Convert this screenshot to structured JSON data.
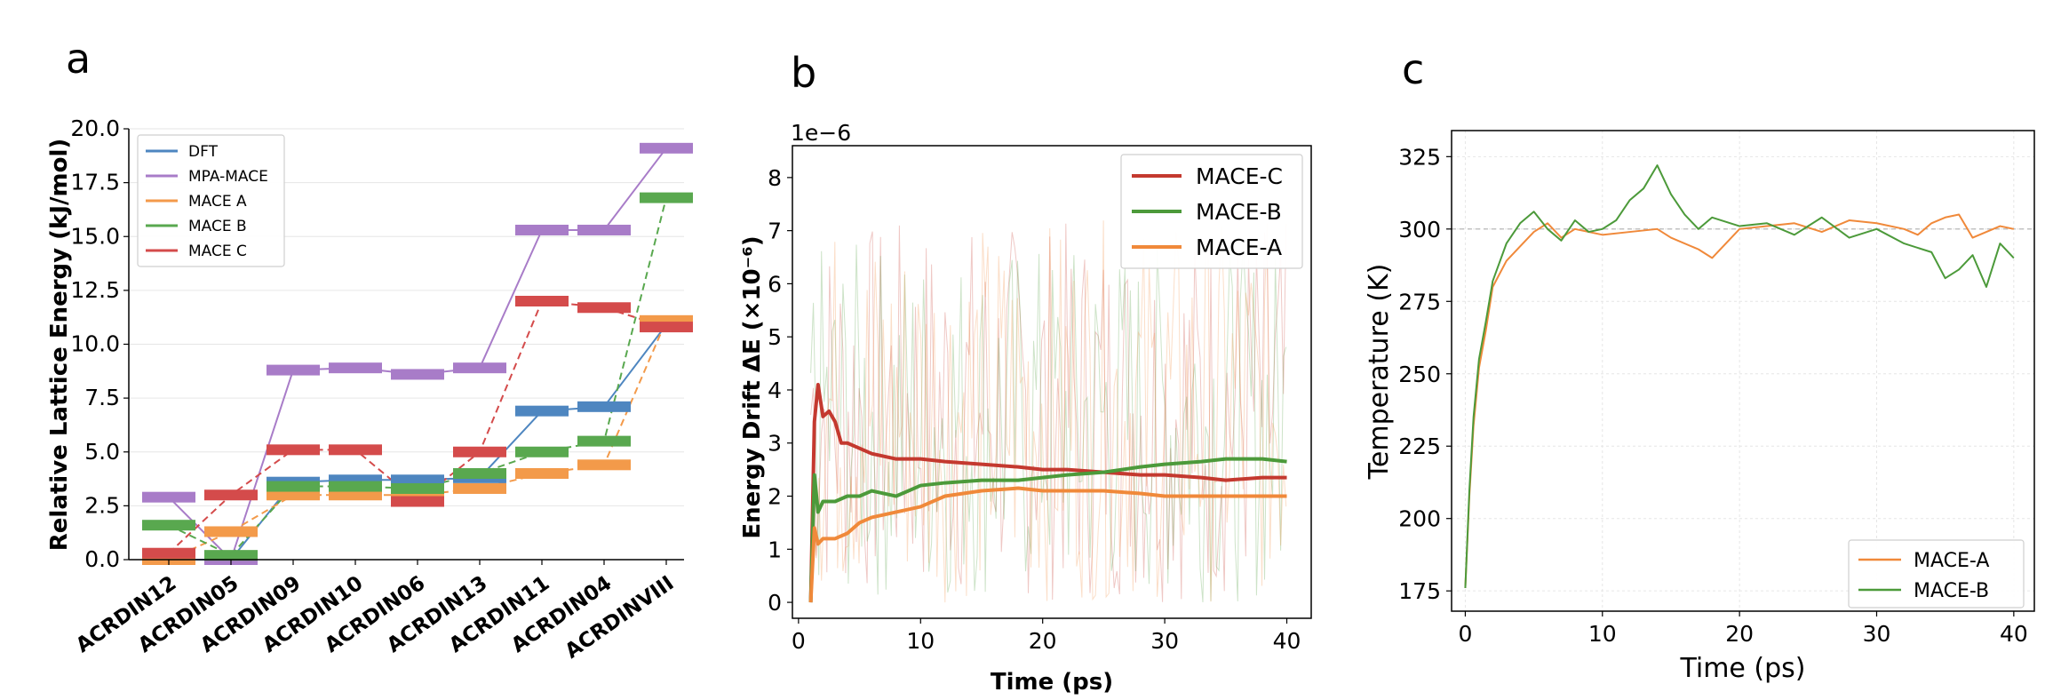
{
  "chart_data": [
    {
      "panel": "a",
      "type": "energy-level",
      "title": "",
      "ylabel": "Relative Lattice Energy (kJ/mol)",
      "xlabel": "",
      "ylim": [
        0,
        20
      ],
      "yticks": [
        "0.0",
        "2.5",
        "5.0",
        "7.5",
        "10.0",
        "12.5",
        "15.0",
        "17.5",
        "20.0"
      ],
      "categories": [
        "ACRDIN12",
        "ACRDIN05",
        "ACRDIN09",
        "ACRDIN10",
        "ACRDIN06",
        "ACRDIN13",
        "ACRDIN11",
        "ACRDIN04",
        "ACRDINVIII"
      ],
      "series": [
        {
          "name": "DFT",
          "color": "#4e86c0",
          "style": "solid",
          "values": [
            0.0,
            0.0,
            3.6,
            3.7,
            3.7,
            3.8,
            6.9,
            7.1,
            10.9
          ]
        },
        {
          "name": "MPA-MACE",
          "color": "#a87cc8",
          "style": "solid",
          "values": [
            2.9,
            0.0,
            8.8,
            8.9,
            8.6,
            8.9,
            15.3,
            15.3,
            19.1
          ]
        },
        {
          "name": "MACE A",
          "color": "#f39a4a",
          "style": "dashed",
          "values": [
            0.0,
            1.3,
            3.0,
            3.0,
            3.0,
            3.3,
            4.0,
            4.4,
            11.1
          ]
        },
        {
          "name": "MACE B",
          "color": "#59a84f",
          "style": "dashed",
          "values": [
            1.6,
            0.2,
            3.4,
            3.4,
            3.3,
            4.0,
            5.0,
            5.5,
            16.8
          ]
        },
        {
          "name": "MACE C",
          "color": "#d44b4b",
          "style": "dashed",
          "values": [
            0.3,
            3.0,
            5.1,
            5.1,
            2.7,
            5.0,
            12.0,
            11.7,
            10.8
          ]
        }
      ],
      "legend_position": "upper-left"
    },
    {
      "panel": "b",
      "type": "line",
      "xlabel": "Time (ps)",
      "ylabel": "Energy Drift ΔE (×10⁻⁶)",
      "offset_text": "1e−6",
      "xlim": [
        -0.5,
        42
      ],
      "ylim": [
        -0.3,
        8.6
      ],
      "xticks": [
        "0",
        "10",
        "20",
        "30",
        "40"
      ],
      "yticks": [
        "0",
        "1",
        "2",
        "3",
        "4",
        "5",
        "6",
        "7",
        "8"
      ],
      "series": [
        {
          "name": "MACE-C",
          "color": "#c4392f",
          "x": [
            1,
            1.3,
            1.6,
            2,
            2.5,
            3,
            3.5,
            4,
            5,
            6,
            8,
            10,
            12,
            15,
            18,
            20,
            22,
            25,
            28,
            30,
            33,
            35,
            38,
            40
          ],
          "values": [
            0.0,
            3.4,
            4.1,
            3.5,
            3.6,
            3.4,
            3.0,
            3.0,
            2.9,
            2.8,
            2.7,
            2.7,
            2.65,
            2.6,
            2.55,
            2.5,
            2.5,
            2.45,
            2.4,
            2.4,
            2.35,
            2.3,
            2.35,
            2.35
          ]
        },
        {
          "name": "MACE-B",
          "color": "#4c9a3a",
          "x": [
            1,
            1.3,
            1.6,
            2,
            3,
            4,
            5,
            6,
            8,
            10,
            12,
            15,
            18,
            20,
            22,
            25,
            28,
            30,
            33,
            35,
            38,
            40
          ],
          "values": [
            0.0,
            2.4,
            1.7,
            1.9,
            1.9,
            2.0,
            2.0,
            2.1,
            2.0,
            2.2,
            2.25,
            2.3,
            2.3,
            2.35,
            2.4,
            2.45,
            2.55,
            2.6,
            2.65,
            2.7,
            2.7,
            2.65
          ]
        },
        {
          "name": "MACE-A",
          "color": "#f0893a",
          "x": [
            1,
            1.3,
            1.6,
            2,
            3,
            4,
            5,
            6,
            8,
            10,
            12,
            15,
            18,
            20,
            22,
            25,
            28,
            30,
            33,
            35,
            38,
            40
          ],
          "values": [
            0.0,
            1.4,
            1.1,
            1.2,
            1.2,
            1.3,
            1.5,
            1.6,
            1.7,
            1.8,
            2.0,
            2.1,
            2.15,
            2.1,
            2.1,
            2.1,
            2.05,
            2.0,
            2.0,
            2.0,
            2.0,
            2.0
          ]
        }
      ],
      "legend_position": "top-right"
    },
    {
      "panel": "c",
      "type": "line",
      "xlabel": "Time (ps)",
      "ylabel": "Temperature (K)",
      "xlim": [
        -1,
        41.5
      ],
      "ylim": [
        168,
        334
      ],
      "xticks": [
        "0",
        "10",
        "20",
        "30",
        "40"
      ],
      "yticks": [
        "175",
        "200",
        "225",
        "250",
        "275",
        "300",
        "325"
      ],
      "reference_line": 300,
      "series": [
        {
          "name": "MACE-A",
          "color": "#f0893a",
          "x": [
            0,
            0.3,
            0.6,
            1,
            1.5,
            2,
            3,
            4,
            5,
            6,
            7,
            8,
            10,
            12,
            14,
            15,
            17,
            18,
            20,
            22,
            24,
            26,
            28,
            30,
            32,
            33,
            34,
            35,
            36,
            37,
            38,
            39,
            40
          ],
          "values": [
            176,
            208,
            232,
            252,
            265,
            280,
            289,
            294,
            299,
            302,
            297,
            300,
            298,
            299,
            300,
            297,
            293,
            290,
            300,
            301,
            302,
            299,
            303,
            302,
            300,
            298,
            302,
            304,
            305,
            297,
            299,
            301,
            300
          ]
        },
        {
          "name": "MACE-B",
          "color": "#4c9a3a",
          "x": [
            0,
            0.3,
            0.6,
            1,
            1.5,
            2,
            3,
            4,
            5,
            6,
            7,
            8,
            9,
            10,
            11,
            12,
            13,
            14,
            15,
            16,
            17,
            18,
            20,
            22,
            24,
            26,
            28,
            30,
            32,
            34,
            35,
            36,
            37,
            38,
            39,
            40
          ],
          "values": [
            176,
            210,
            235,
            255,
            268,
            282,
            295,
            302,
            306,
            300,
            296,
            303,
            299,
            300,
            303,
            310,
            314,
            322,
            312,
            305,
            300,
            304,
            301,
            302,
            298,
            304,
            297,
            300,
            295,
            292,
            283,
            286,
            291,
            280,
            295,
            290
          ]
        }
      ],
      "legend_position": "lower-right"
    }
  ]
}
